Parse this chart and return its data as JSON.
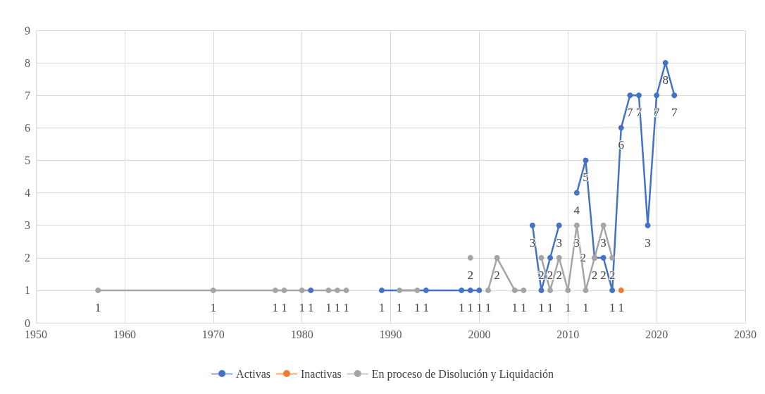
{
  "chart_data": {
    "type": "line",
    "xlim": [
      1950,
      2030
    ],
    "xticks": [
      1950,
      1960,
      1970,
      1980,
      1990,
      2000,
      2010,
      2020,
      2030
    ],
    "ylim": [
      0,
      9
    ],
    "yticks": [
      0,
      1,
      2,
      3,
      4,
      5,
      6,
      7,
      8,
      9
    ],
    "grid": true,
    "legend": "bottom",
    "marker": "circle",
    "line_style": "solid",
    "data_labels": true,
    "series": [
      {
        "name": "Activas",
        "color": "#4472c4",
        "x": [
          1981,
          1982,
          1989,
          1994,
          1998,
          1999,
          2000,
          2001,
          2006,
          2007,
          2008,
          2009,
          2010,
          2011,
          2012,
          2013,
          2014,
          2015,
          2016,
          2017,
          2018,
          2019,
          2020,
          2021,
          2022
        ],
        "values": [
          1,
          null,
          1,
          1,
          1,
          1,
          1,
          null,
          3,
          1,
          2,
          3,
          null,
          4,
          5,
          2,
          2,
          1,
          6,
          7,
          7,
          3,
          7,
          8,
          7
        ]
      },
      {
        "name": "Inactivas",
        "color": "#ed7d31",
        "x": [
          2016
        ],
        "values": [
          1
        ]
      },
      {
        "name": "En proceso de Disolución y Liquidación",
        "color": "#a5a5a5",
        "x": [
          1957,
          1970,
          1977,
          1978,
          1980,
          1983,
          1984,
          1985,
          1986,
          1991,
          1993,
          1995,
          1999,
          2000,
          2001,
          2002,
          2004,
          2005,
          2006,
          2007,
          2008,
          2009,
          2010,
          2011,
          2012,
          2013,
          2014,
          2015
        ],
        "values": [
          1,
          1,
          1,
          1,
          1,
          1,
          1,
          1,
          null,
          1,
          1,
          null,
          2,
          null,
          1,
          2,
          1,
          1,
          null,
          2,
          1,
          2,
          1,
          3,
          1,
          2,
          3,
          2
        ]
      }
    ]
  }
}
